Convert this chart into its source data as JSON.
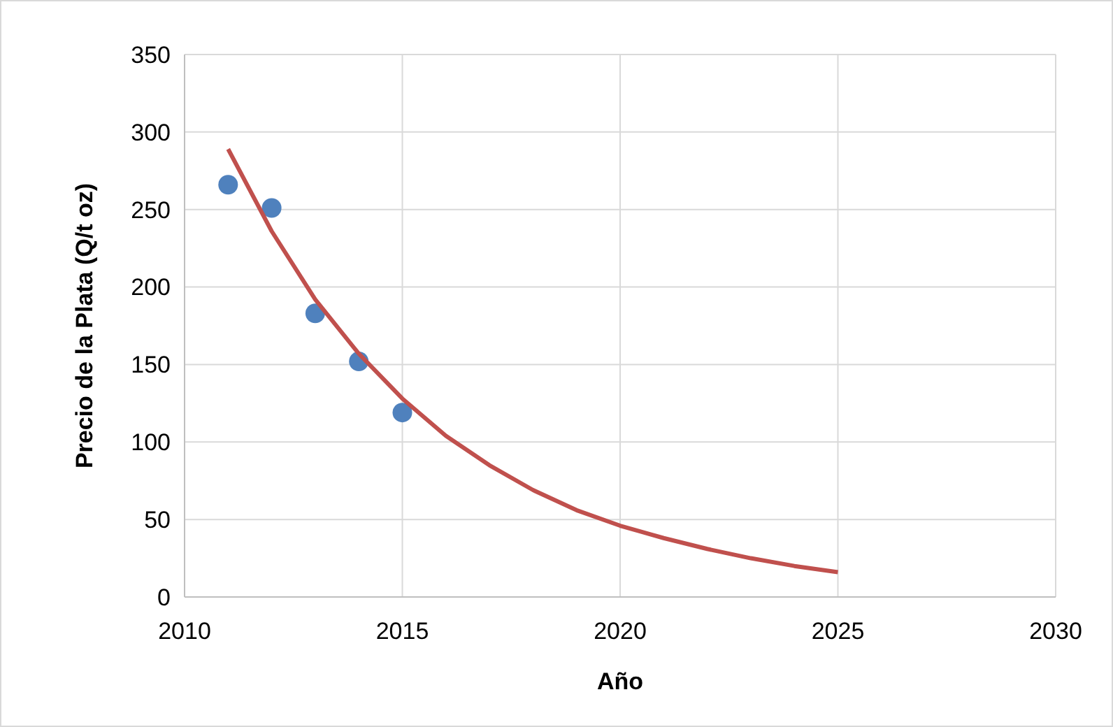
{
  "chart_data": {
    "type": "scatter",
    "xlabel": "Año",
    "ylabel": "Precio de la Plata (Q/t oz)",
    "xlim": [
      2010,
      2030
    ],
    "xticks": [
      2010,
      2015,
      2020,
      2025,
      2030
    ],
    "ylim": [
      0,
      350
    ],
    "yticks": [
      0,
      50,
      100,
      150,
      200,
      250,
      300,
      350
    ],
    "grid": true,
    "series": [
      {
        "color": "#4f81bd",
        "marker": "circle",
        "x": [
          2011,
          2012,
          2013,
          2014,
          2015
        ],
        "values": [
          266,
          251,
          183,
          152,
          119
        ]
      },
      {
        "type": "line",
        "color": "#c0504d",
        "marker": "none",
        "line_style": "solid",
        "x": [
          2011,
          2012,
          2013,
          2014,
          2015,
          2016,
          2017,
          2018,
          2019,
          2020,
          2021,
          2022,
          2023,
          2024,
          2025
        ],
        "values": [
          289,
          236,
          192,
          157,
          128,
          104,
          85,
          69,
          56,
          46,
          38,
          31,
          25,
          20,
          16
        ]
      }
    ]
  }
}
